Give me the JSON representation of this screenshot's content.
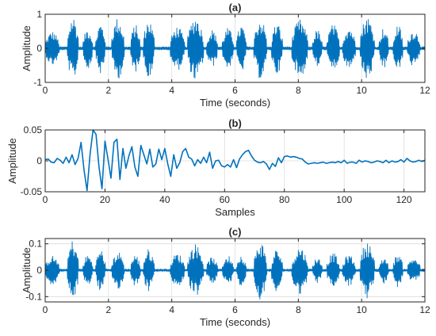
{
  "colors": {
    "line": "#0072BD",
    "axis": "#262626",
    "grid": "#dcdcdc",
    "background": "#ffffff"
  },
  "chart_data": [
    {
      "type": "line",
      "title": "(a)",
      "xlabel": "Time (seconds)",
      "ylabel": "Amplitude",
      "xlim": [
        0,
        12
      ],
      "ylim": [
        -1,
        1
      ],
      "xticks": [
        0,
        2,
        4,
        6,
        8,
        10,
        12
      ],
      "xtick_labels": [
        "0",
        "2",
        "4",
        "6",
        "8",
        "10",
        "12"
      ],
      "yticks": [
        -1,
        0,
        1
      ],
      "ytick_labels": [
        "-1",
        "0",
        "1"
      ],
      "grid": true,
      "series": [
        {
          "style": "waveform",
          "bursts": [
            {
              "start": 0.0,
              "end": 0.45,
              "amp": 0.5
            },
            {
              "start": 0.7,
              "end": 1.05,
              "amp": 0.95
            },
            {
              "start": 1.2,
              "end": 1.5,
              "amp": 0.6
            },
            {
              "start": 1.6,
              "end": 1.9,
              "amp": 0.75
            },
            {
              "start": 2.1,
              "end": 2.5,
              "amp": 0.9
            },
            {
              "start": 2.7,
              "end": 3.0,
              "amp": 0.7
            },
            {
              "start": 3.1,
              "end": 3.45,
              "amp": 0.85
            },
            {
              "start": 3.95,
              "end": 4.4,
              "amp": 0.65
            },
            {
              "start": 4.5,
              "end": 5.0,
              "amp": 0.95
            },
            {
              "start": 5.1,
              "end": 5.45,
              "amp": 0.55
            },
            {
              "start": 5.6,
              "end": 5.95,
              "amp": 0.6
            },
            {
              "start": 6.05,
              "end": 6.35,
              "amp": 0.7
            },
            {
              "start": 6.6,
              "end": 7.0,
              "amp": 0.9
            },
            {
              "start": 7.15,
              "end": 7.5,
              "amp": 0.75
            },
            {
              "start": 7.8,
              "end": 8.3,
              "amp": 0.85
            },
            {
              "start": 8.45,
              "end": 8.75,
              "amp": 0.55
            },
            {
              "start": 8.9,
              "end": 9.3,
              "amp": 0.7
            },
            {
              "start": 9.4,
              "end": 9.8,
              "amp": 0.65
            },
            {
              "start": 9.95,
              "end": 10.4,
              "amp": 0.95
            },
            {
              "start": 10.55,
              "end": 10.85,
              "amp": 0.6
            },
            {
              "start": 11.0,
              "end": 11.3,
              "amp": 0.7
            },
            {
              "start": 11.45,
              "end": 11.85,
              "amp": 0.55
            }
          ],
          "noise_floor": 0.05,
          "sample_count": 900
        }
      ]
    },
    {
      "type": "line",
      "title": "(b)",
      "xlabel": "Samples",
      "ylabel": "Amplitude",
      "xlim": [
        0,
        127
      ],
      "ylim": [
        -0.05,
        0.05
      ],
      "xticks": [
        0,
        20,
        40,
        60,
        80,
        100,
        120
      ],
      "xtick_labels": [
        "0",
        "20",
        "40",
        "60",
        "80",
        "100",
        "120"
      ],
      "yticks": [
        -0.05,
        0,
        0.05
      ],
      "ytick_labels": [
        "-0.05",
        "0",
        "0.05"
      ],
      "grid": true,
      "series": [
        {
          "x": [
            0,
            1,
            2,
            3,
            4,
            5,
            6,
            7,
            8,
            9,
            10,
            11,
            12,
            13,
            14,
            15,
            16,
            17,
            18,
            19,
            20,
            21,
            22,
            23,
            24,
            25,
            26,
            27,
            28,
            29,
            30,
            31,
            32,
            33,
            34,
            35,
            36,
            37,
            38,
            39,
            40,
            41,
            42,
            43,
            44,
            45,
            46,
            47,
            48,
            49,
            50,
            51,
            52,
            53,
            54,
            55,
            56,
            57,
            58,
            59,
            60,
            61,
            62,
            63,
            64,
            65,
            66,
            67,
            68,
            69,
            70,
            71,
            72,
            73,
            74,
            75,
            76,
            77,
            78,
            79,
            80,
            81,
            82,
            83,
            84,
            85,
            86,
            87,
            88,
            89,
            90,
            91,
            92,
            93,
            94,
            95,
            96,
            97,
            98,
            99,
            100,
            101,
            102,
            103,
            104,
            105,
            106,
            107,
            108,
            109,
            110,
            111,
            112,
            113,
            114,
            115,
            116,
            117,
            118,
            119,
            120,
            121,
            122,
            123,
            124,
            125,
            126,
            127
          ],
          "y": [
            0.002,
            0.003,
            -0.002,
            -0.003,
            0.004,
            0.001,
            -0.004,
            0.006,
            -0.003,
            0.01,
            -0.006,
            0.004,
            0.03,
            -0.015,
            -0.048,
            0.01,
            0.05,
            0.043,
            -0.01,
            -0.045,
            0.032,
            0.003,
            -0.028,
            0.03,
            0.035,
            -0.03,
            0.02,
            -0.012,
            0.008,
            0.023,
            -0.01,
            -0.025,
            0.025,
            0.01,
            -0.005,
            0.019,
            -0.01,
            -0.005,
            0.019,
            0.002,
            0.02,
            -0.005,
            -0.025,
            0.01,
            -0.012,
            -0.003,
            0.015,
            0.02,
            0.006,
            0.003,
            -0.008,
            0.002,
            -0.004,
            0.006,
            -0.003,
            0.014,
            -0.012,
            0.0,
            0.001,
            -0.008,
            -0.01,
            -0.006,
            -0.01,
            0.002,
            -0.011,
            0.003,
            0.01,
            0.015,
            0.017,
            0.008,
            0.001,
            -0.002,
            -0.003,
            -0.001,
            -0.005,
            -0.014,
            -0.004,
            -0.009,
            0.005,
            -0.003,
            0.007,
            0.008,
            0.006,
            0.007,
            0.006,
            0.004,
            0.003,
            -0.002,
            -0.005,
            -0.004,
            -0.003,
            -0.004,
            -0.003,
            -0.002,
            -0.004,
            -0.003,
            -0.002,
            -0.003,
            -0.001,
            -0.003,
            0.001,
            -0.004,
            -0.002,
            -0.002,
            -0.004,
            0.001,
            -0.002,
            0.0,
            -0.001,
            -0.003,
            -0.002,
            0.0,
            -0.001,
            -0.003,
            0.001,
            -0.003,
            0.0,
            -0.002,
            -0.001,
            0.002,
            -0.002,
            0.004,
            0.0,
            -0.002,
            -0.001,
            0.001,
            -0.001,
            0.001
          ]
        }
      ]
    },
    {
      "type": "line",
      "title": "(c)",
      "xlabel": "Time (seconds)",
      "ylabel": "Amplitude",
      "xlim": [
        0,
        12
      ],
      "ylim": [
        -0.12,
        0.12
      ],
      "xticks": [
        0,
        2,
        4,
        6,
        8,
        10,
        12
      ],
      "xtick_labels": [
        "0",
        "2",
        "4",
        "6",
        "8",
        "10",
        "12"
      ],
      "yticks": [
        -0.1,
        0,
        0.1
      ],
      "ytick_labels": [
        "-0.1",
        "0",
        "0.1"
      ],
      "grid": true,
      "series": [
        {
          "style": "waveform",
          "bursts": [
            {
              "start": 0.0,
              "end": 0.45,
              "amp": 0.055
            },
            {
              "start": 0.7,
              "end": 1.05,
              "amp": 0.115
            },
            {
              "start": 1.2,
              "end": 1.5,
              "amp": 0.06
            },
            {
              "start": 1.6,
              "end": 1.9,
              "amp": 0.08
            },
            {
              "start": 2.1,
              "end": 2.5,
              "amp": 0.07
            },
            {
              "start": 2.7,
              "end": 3.0,
              "amp": 0.06
            },
            {
              "start": 3.1,
              "end": 3.45,
              "amp": 0.08
            },
            {
              "start": 3.95,
              "end": 4.4,
              "amp": 0.065
            },
            {
              "start": 4.5,
              "end": 5.0,
              "amp": 0.1
            },
            {
              "start": 5.1,
              "end": 5.45,
              "amp": 0.05
            },
            {
              "start": 5.6,
              "end": 5.95,
              "amp": 0.055
            },
            {
              "start": 6.05,
              "end": 6.35,
              "amp": 0.06
            },
            {
              "start": 6.6,
              "end": 7.0,
              "amp": 0.11
            },
            {
              "start": 7.15,
              "end": 7.5,
              "amp": 0.08
            },
            {
              "start": 7.8,
              "end": 8.3,
              "amp": 0.09
            },
            {
              "start": 8.45,
              "end": 8.75,
              "amp": 0.05
            },
            {
              "start": 8.9,
              "end": 9.3,
              "amp": 0.065
            },
            {
              "start": 9.4,
              "end": 9.8,
              "amp": 0.06
            },
            {
              "start": 9.95,
              "end": 10.4,
              "amp": 0.11
            },
            {
              "start": 10.55,
              "end": 10.85,
              "amp": 0.05
            },
            {
              "start": 11.0,
              "end": 11.3,
              "amp": 0.065
            },
            {
              "start": 11.45,
              "end": 11.85,
              "amp": 0.05
            }
          ],
          "noise_floor": 0.005,
          "sample_count": 900
        }
      ]
    }
  ]
}
